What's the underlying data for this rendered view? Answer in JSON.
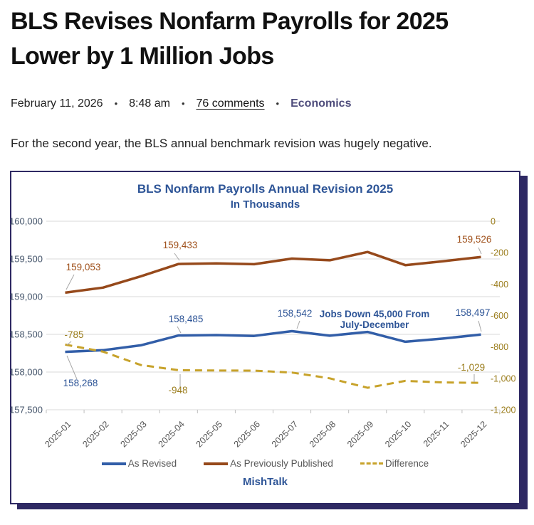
{
  "post": {
    "title": "BLS Revises Nonfarm Payrolls for 2025 Lower by 1 Million Jobs",
    "date": "February 11, 2026",
    "time": "8:48 am",
    "comments": "76 comments",
    "category": "Economics",
    "separator": "•",
    "intro": "For the second year, the BLS annual benchmark revision was hugely negative."
  },
  "colors": {
    "category_link": "#4f4d7c",
    "chart_border": "#2e2963",
    "chart_text_blue": "#2e5597",
    "left_axis_label": "#44546a",
    "right_axis_label": "#9b7d1c",
    "gridline": "#d9d9d9",
    "tick": "#bfbfbf",
    "leader_line": "#a6a6a6",
    "x_label": "#555555",
    "legend_text": "#595959"
  },
  "chart_data": {
    "type": "line",
    "title": "BLS Nonfarm Payrolls Annual Revision 2025",
    "subtitle": "In Thousands",
    "watermark": "MishTalk",
    "categories": [
      "2025-01",
      "2025-02",
      "2025-03",
      "2025-04",
      "2025-05",
      "2025-06",
      "2025-07",
      "2025-08",
      "2025-09",
      "2025-10",
      "2025-11",
      "2025-12"
    ],
    "series": [
      {
        "name": "As Revised",
        "color": "#325ea8",
        "label_color": "#2e5597",
        "axis": "left",
        "style": "solid",
        "values": [
          158268,
          158290,
          158355,
          158485,
          158491,
          158479,
          158542,
          158482,
          158532,
          158402,
          158444,
          158497
        ]
      },
      {
        "name": "As Previously Published",
        "color": "#96491b",
        "label_color": "#a0521d",
        "axis": "left",
        "style": "solid",
        "values": [
          159053,
          159120,
          159270,
          159433,
          159441,
          159430,
          159505,
          159482,
          159592,
          159418,
          159470,
          159526
        ]
      },
      {
        "name": "Difference",
        "color": "#c7a22a",
        "label_color": "#9b7d1c",
        "axis": "right",
        "style": "dashed",
        "values": [
          -785,
          -830,
          -915,
          -948,
          -950,
          -951,
          -963,
          -1000,
          -1060,
          -1016,
          -1026,
          -1029
        ]
      }
    ],
    "left_axis": {
      "min": 157500,
      "max": 160000,
      "step": 500,
      "ticks": [
        "160,000",
        "159,500",
        "159,000",
        "158,500",
        "158,000",
        "157,500"
      ]
    },
    "right_axis": {
      "min": -1200,
      "max": 0,
      "step": 200,
      "ticks": [
        "0",
        "-200",
        "-400",
        "-600",
        "-800",
        "-1,000",
        "-1,200"
      ]
    },
    "annotation": {
      "lines": [
        "Jobs Down 45,000 From",
        "July-December"
      ]
    },
    "data_labels": [
      {
        "series": 1,
        "point": 0,
        "text": "159,053"
      },
      {
        "series": 1,
        "point": 3,
        "text": "159,433"
      },
      {
        "series": 1,
        "point": 11,
        "text": "159,526"
      },
      {
        "series": 0,
        "point": 0,
        "text": "158,268"
      },
      {
        "series": 0,
        "point": 3,
        "text": "158,485"
      },
      {
        "series": 0,
        "point": 6,
        "text": "158,542"
      },
      {
        "series": 0,
        "point": 11,
        "text": "158,497"
      },
      {
        "series": 2,
        "point": 0,
        "text": "-785"
      },
      {
        "series": 2,
        "point": 3,
        "text": "-948"
      },
      {
        "series": 2,
        "point": 11,
        "text": "-1,029"
      }
    ],
    "legend_position": "bottom",
    "grid": true
  }
}
